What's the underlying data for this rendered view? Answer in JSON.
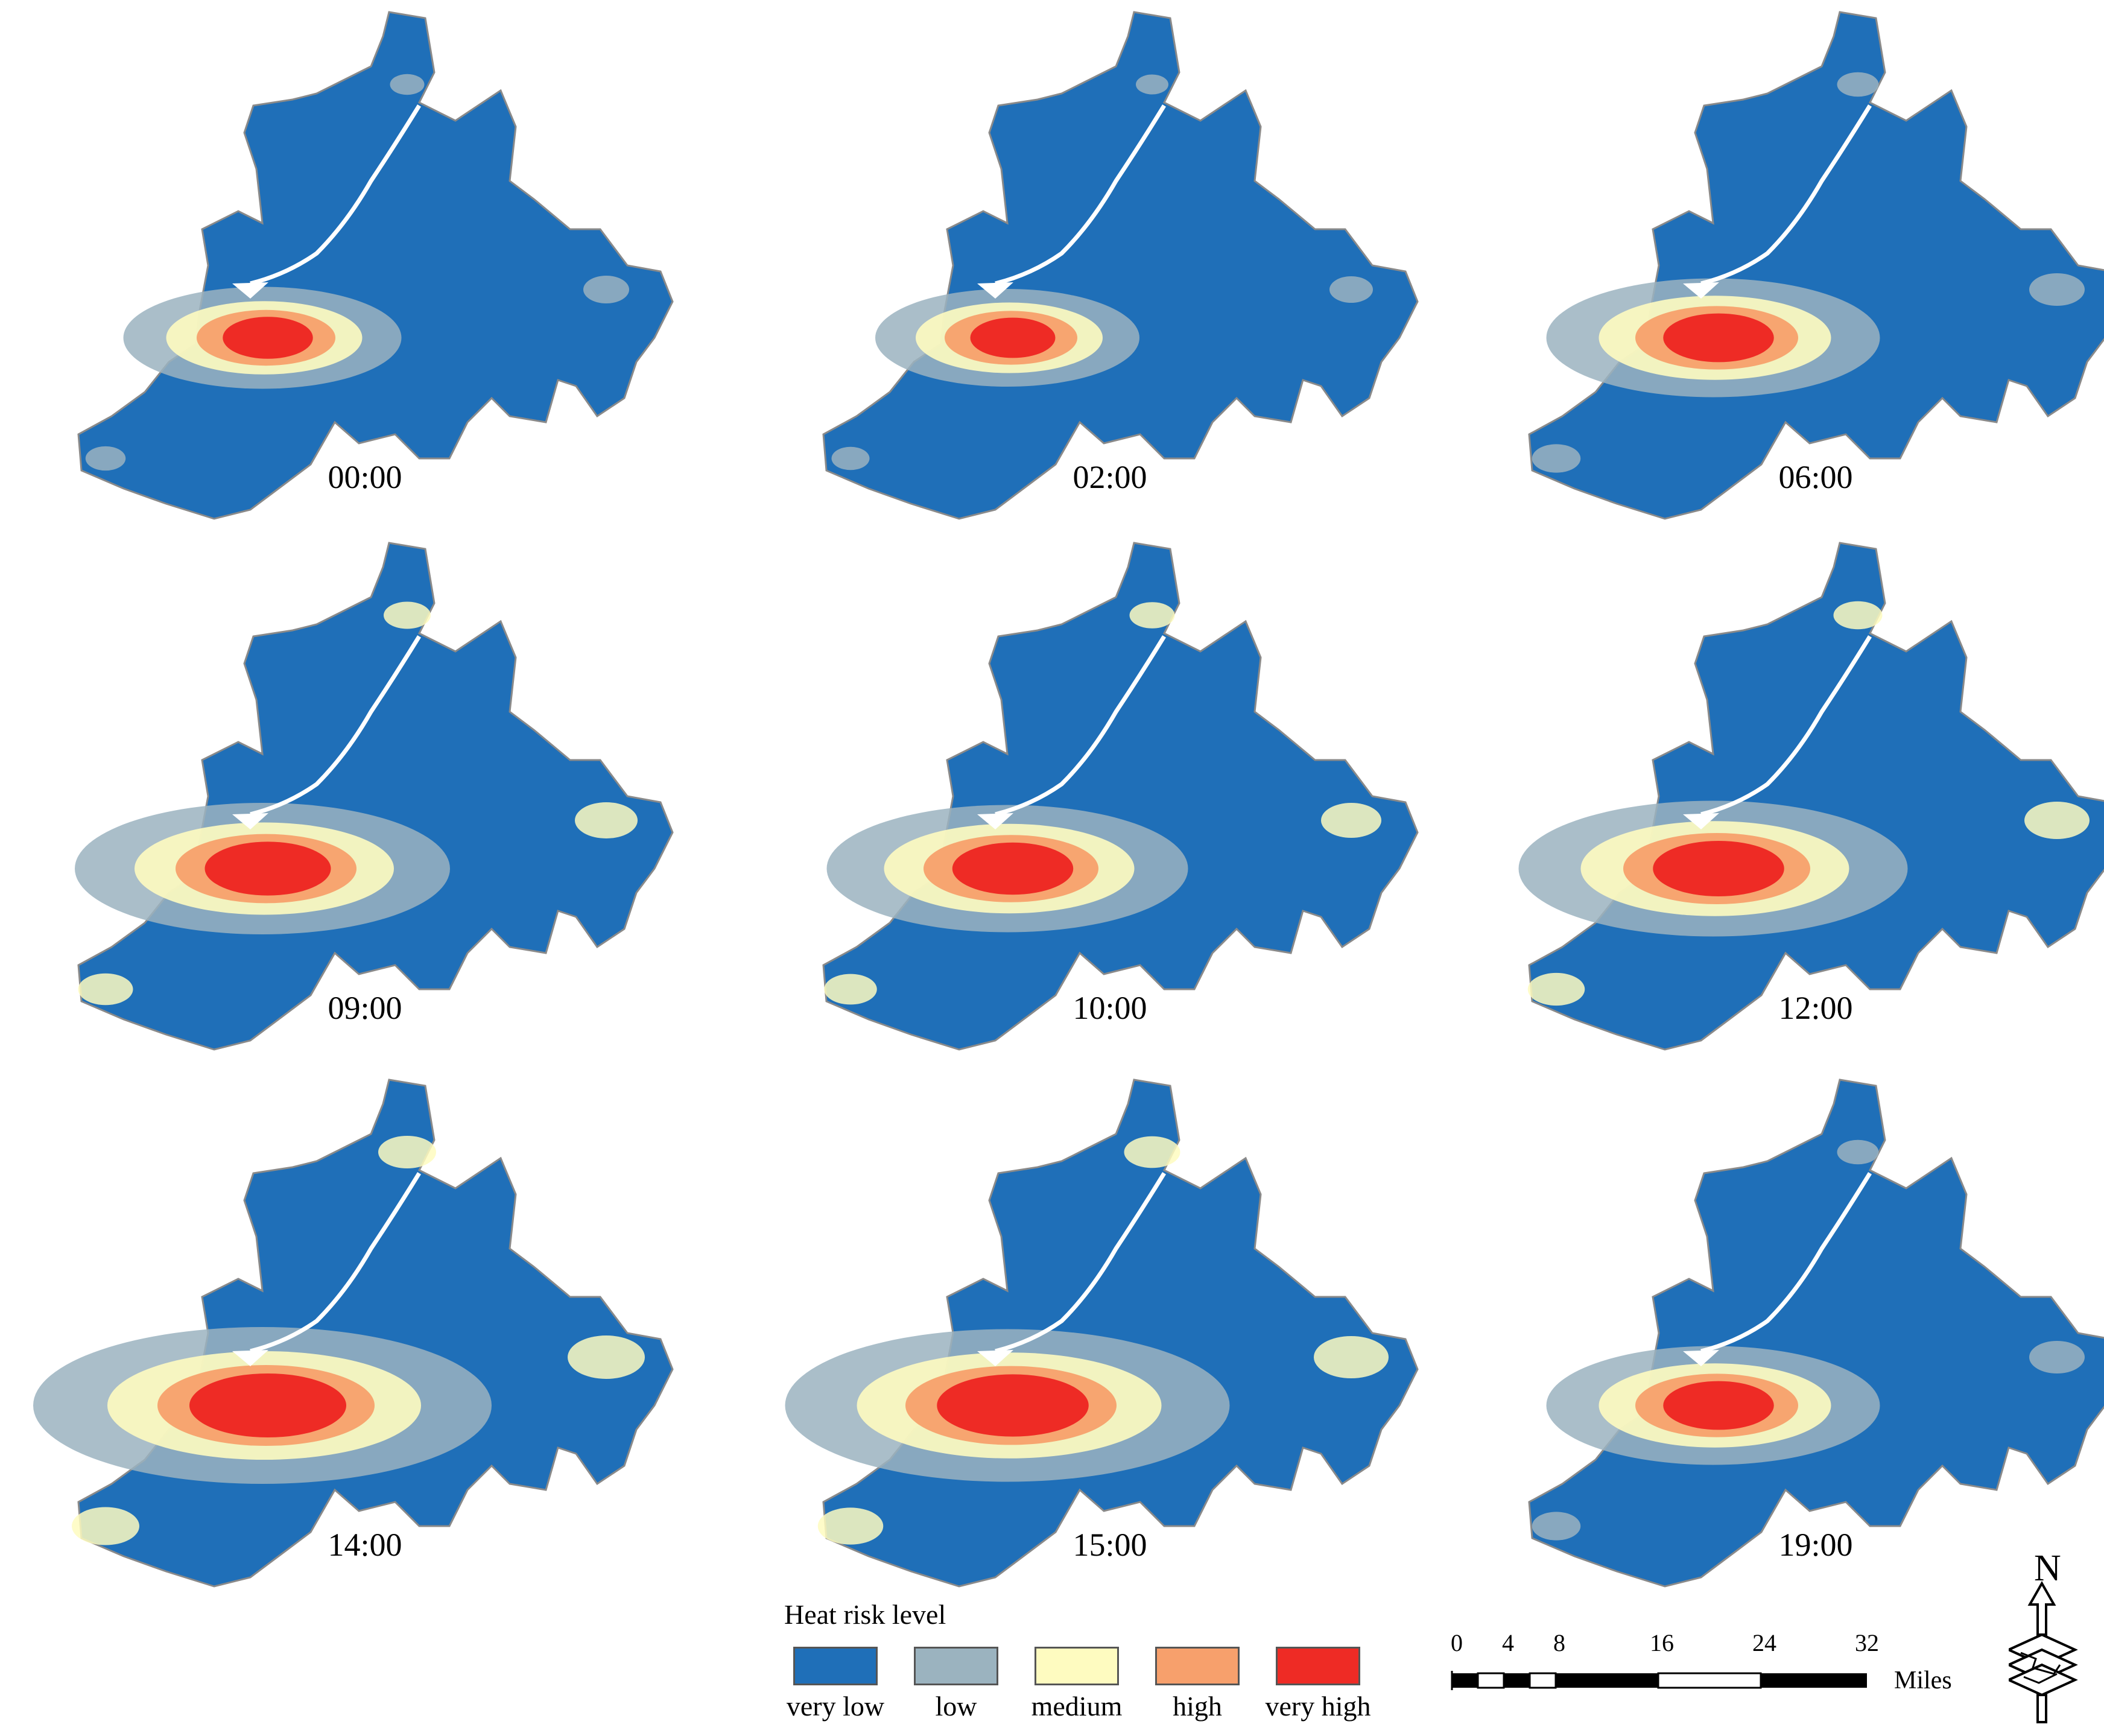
{
  "panels": [
    {
      "time": "00:00",
      "intensity": 0.35
    },
    {
      "time": "02:00",
      "intensity": 0.3
    },
    {
      "time": "06:00",
      "intensity": 0.55
    },
    {
      "time": "09:00",
      "intensity": 0.7
    },
    {
      "time": "10:00",
      "intensity": 0.65
    },
    {
      "time": "12:00",
      "intensity": 0.75
    },
    {
      "time": "14:00",
      "intensity": 1.0
    },
    {
      "time": "15:00",
      "intensity": 0.95
    },
    {
      "time": "19:00",
      "intensity": 0.55
    }
  ],
  "legend": {
    "title": "Heat risk level",
    "items": [
      {
        "label": "very low",
        "color": "#1f6fb8"
      },
      {
        "label": "low",
        "color": "#9bb3bf"
      },
      {
        "label": "medium",
        "color": "#fefbc0"
      },
      {
        "label": "high",
        "color": "#f7a06c"
      },
      {
        "label": "very high",
        "color": "#ee2b25"
      }
    ]
  },
  "scale_bar": {
    "ticks": [
      "0",
      "4",
      "8",
      "16",
      "24",
      "32"
    ],
    "units": "Miles"
  },
  "north_arrow": {
    "label": "N"
  }
}
